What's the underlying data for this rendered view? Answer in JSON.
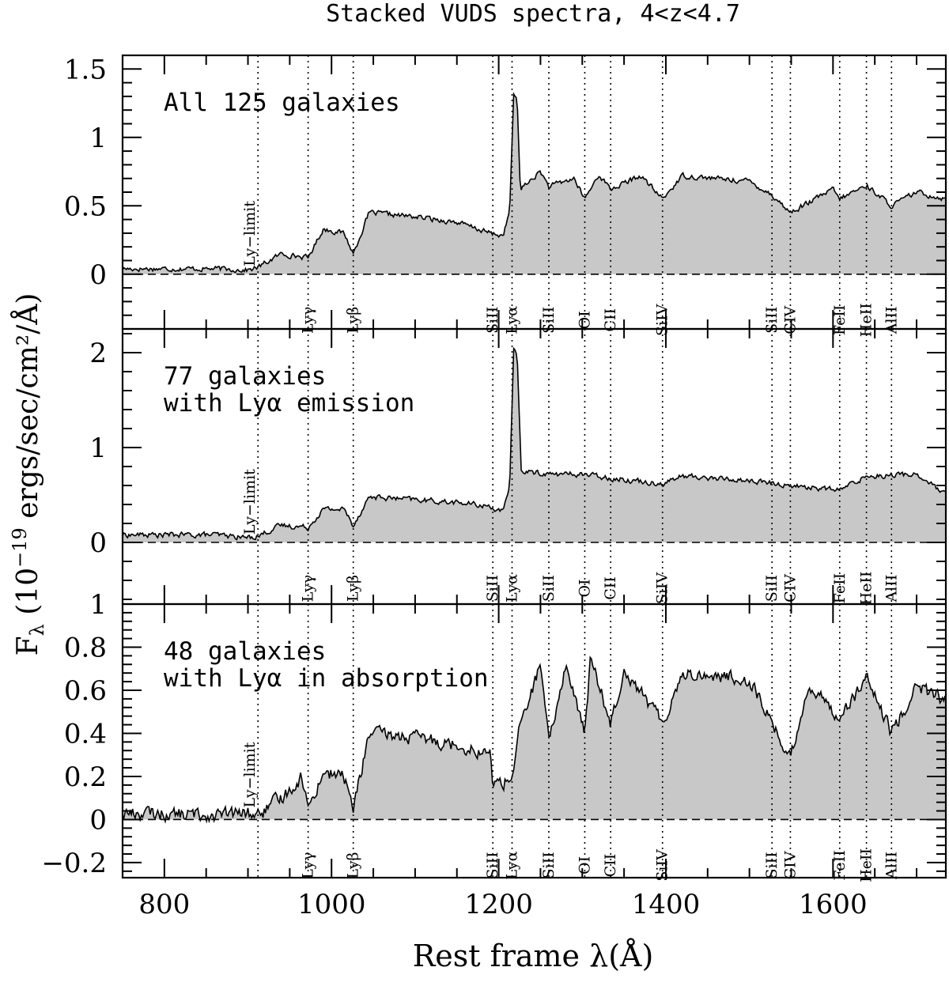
{
  "figure": {
    "title": "Stacked VUDS spectra, 4<z<4.7",
    "xlabel": "Rest frame λ(Å)",
    "ylabel_main": "F",
    "ylabel_sub": "λ",
    "ylabel_rest": " (10",
    "ylabel_exp": "−19",
    "ylabel_units": " ergs/sec/cm²/Å)",
    "fill_color": "#c8c8c8",
    "line_color": "#000000"
  },
  "chart_data": [
    {
      "type": "area",
      "panel": "top",
      "annotation": [
        "All 125 galaxies"
      ],
      "xlim": [
        750,
        1735
      ],
      "ylim": [
        -0.4,
        1.6
      ],
      "yticks": [
        0,
        0.5,
        1,
        1.5
      ],
      "ytick_labels": [
        "0",
        "0.5",
        "1",
        "1.5"
      ],
      "features": [
        {
          "x": 860,
          "y": 0.04
        },
        {
          "x": 900,
          "y": 0.03
        },
        {
          "x": 912,
          "y": 0.05
        },
        {
          "x": 940,
          "y": 0.15
        },
        {
          "x": 972,
          "y": 0.12
        },
        {
          "x": 990,
          "y": 0.33
        },
        {
          "x": 1015,
          "y": 0.3
        },
        {
          "x": 1026,
          "y": 0.15
        },
        {
          "x": 1045,
          "y": 0.45
        },
        {
          "x": 1100,
          "y": 0.42
        },
        {
          "x": 1150,
          "y": 0.38
        },
        {
          "x": 1190,
          "y": 0.3
        },
        {
          "x": 1205,
          "y": 0.28
        },
        {
          "x": 1213,
          "y": 0.45
        },
        {
          "x": 1218,
          "y": 1.3
        },
        {
          "x": 1222,
          "y": 1.28
        },
        {
          "x": 1226,
          "y": 0.62
        },
        {
          "x": 1250,
          "y": 0.75
        },
        {
          "x": 1260,
          "y": 0.64
        },
        {
          "x": 1290,
          "y": 0.7
        },
        {
          "x": 1303,
          "y": 0.55
        },
        {
          "x": 1320,
          "y": 0.73
        },
        {
          "x": 1334,
          "y": 0.62
        },
        {
          "x": 1370,
          "y": 0.72
        },
        {
          "x": 1396,
          "y": 0.55
        },
        {
          "x": 1420,
          "y": 0.72
        },
        {
          "x": 1500,
          "y": 0.68
        },
        {
          "x": 1527,
          "y": 0.58
        },
        {
          "x": 1549,
          "y": 0.45
        },
        {
          "x": 1600,
          "y": 0.62
        },
        {
          "x": 1608,
          "y": 0.55
        },
        {
          "x": 1640,
          "y": 0.65
        },
        {
          "x": 1670,
          "y": 0.5
        },
        {
          "x": 1700,
          "y": 0.6
        },
        {
          "x": 1735,
          "y": 0.55
        }
      ],
      "noise": 0.03,
      "sign_extra": 0
    },
    {
      "type": "area",
      "panel": "middle",
      "annotation": [
        "77 galaxies",
        "with Lyα emission"
      ],
      "xlim": [
        750,
        1735
      ],
      "ylim": [
        -0.65,
        2.25
      ],
      "yticks": [
        0,
        1,
        2
      ],
      "ytick_labels": [
        "0",
        "1",
        "2"
      ],
      "features": [
        {
          "x": 860,
          "y": 0.08
        },
        {
          "x": 900,
          "y": 0.05
        },
        {
          "x": 912,
          "y": 0.07
        },
        {
          "x": 940,
          "y": 0.18
        },
        {
          "x": 972,
          "y": 0.16
        },
        {
          "x": 990,
          "y": 0.35
        },
        {
          "x": 1015,
          "y": 0.35
        },
        {
          "x": 1026,
          "y": 0.18
        },
        {
          "x": 1045,
          "y": 0.48
        },
        {
          "x": 1100,
          "y": 0.45
        },
        {
          "x": 1150,
          "y": 0.42
        },
        {
          "x": 1190,
          "y": 0.38
        },
        {
          "x": 1205,
          "y": 0.32
        },
        {
          "x": 1213,
          "y": 0.55
        },
        {
          "x": 1218,
          "y": 2.05
        },
        {
          "x": 1222,
          "y": 2.0
        },
        {
          "x": 1227,
          "y": 0.75
        },
        {
          "x": 1260,
          "y": 0.72
        },
        {
          "x": 1300,
          "y": 0.72
        },
        {
          "x": 1334,
          "y": 0.68
        },
        {
          "x": 1396,
          "y": 0.62
        },
        {
          "x": 1420,
          "y": 0.7
        },
        {
          "x": 1500,
          "y": 0.65
        },
        {
          "x": 1549,
          "y": 0.6
        },
        {
          "x": 1608,
          "y": 0.55
        },
        {
          "x": 1640,
          "y": 0.7
        },
        {
          "x": 1700,
          "y": 0.72
        },
        {
          "x": 1735,
          "y": 0.5
        }
      ],
      "noise": 0.045,
      "sign_extra": 0
    },
    {
      "type": "area",
      "panel": "bottom",
      "annotation": [
        "48 galaxies",
        "with Lyα in absorption"
      ],
      "xlim": [
        750,
        1735
      ],
      "ylim": [
        -0.27,
        1.0
      ],
      "yticks": [
        -0.2,
        0,
        0.2,
        0.4,
        0.6,
        0.8,
        1
      ],
      "ytick_labels": [
        "−0.2",
        "0",
        "0.2",
        "0.4",
        "0.6",
        "0.8",
        "1"
      ],
      "features": [
        {
          "x": 760,
          "y": 0.03
        },
        {
          "x": 860,
          "y": 0.02
        },
        {
          "x": 900,
          "y": 0.03
        },
        {
          "x": 912,
          "y": 0.02
        },
        {
          "x": 940,
          "y": 0.1
        },
        {
          "x": 965,
          "y": 0.2
        },
        {
          "x": 972,
          "y": 0.05
        },
        {
          "x": 990,
          "y": 0.22
        },
        {
          "x": 1015,
          "y": 0.2
        },
        {
          "x": 1026,
          "y": 0.05
        },
        {
          "x": 1045,
          "y": 0.4
        },
        {
          "x": 1100,
          "y": 0.38
        },
        {
          "x": 1150,
          "y": 0.35
        },
        {
          "x": 1190,
          "y": 0.3
        },
        {
          "x": 1193,
          "y": 0.17
        },
        {
          "x": 1205,
          "y": 0.17
        },
        {
          "x": 1216,
          "y": 0.2
        },
        {
          "x": 1225,
          "y": 0.42
        },
        {
          "x": 1250,
          "y": 0.72
        },
        {
          "x": 1260,
          "y": 0.35
        },
        {
          "x": 1280,
          "y": 0.72
        },
        {
          "x": 1303,
          "y": 0.4
        },
        {
          "x": 1310,
          "y": 0.75
        },
        {
          "x": 1334,
          "y": 0.45
        },
        {
          "x": 1350,
          "y": 0.7
        },
        {
          "x": 1396,
          "y": 0.45
        },
        {
          "x": 1420,
          "y": 0.68
        },
        {
          "x": 1500,
          "y": 0.65
        },
        {
          "x": 1527,
          "y": 0.45
        },
        {
          "x": 1549,
          "y": 0.28
        },
        {
          "x": 1570,
          "y": 0.62
        },
        {
          "x": 1608,
          "y": 0.48
        },
        {
          "x": 1640,
          "y": 0.65
        },
        {
          "x": 1670,
          "y": 0.4
        },
        {
          "x": 1700,
          "y": 0.62
        },
        {
          "x": 1735,
          "y": 0.55
        }
      ],
      "noise": 0.05,
      "sign_extra": 0.01
    }
  ],
  "shared_axes": {
    "xticks": [
      800,
      1000,
      1200,
      1400,
      1600
    ],
    "xtick_labels": [
      "800",
      "1000",
      "1200",
      "1400",
      "1600"
    ],
    "xminor_step": 50
  },
  "lines": [
    {
      "label": "Ly−limit",
      "x": 912,
      "kind": "limit"
    },
    {
      "label": "Lyγ",
      "x": 972
    },
    {
      "label": "Lyβ",
      "x": 1026
    },
    {
      "label": "SiII",
      "x": 1193
    },
    {
      "label": "Lyα",
      "x": 1216
    },
    {
      "label": "SiII",
      "x": 1260
    },
    {
      "label": "OI",
      "x": 1303
    },
    {
      "label": "CII",
      "x": 1334
    },
    {
      "label": "SiIV",
      "x": 1396
    },
    {
      "label": "SiII",
      "x": 1527
    },
    {
      "label": "CIV",
      "x": 1549
    },
    {
      "label": "FeII",
      "x": 1608
    },
    {
      "label": "HeII",
      "x": 1640
    },
    {
      "label": "AlII",
      "x": 1670
    }
  ]
}
